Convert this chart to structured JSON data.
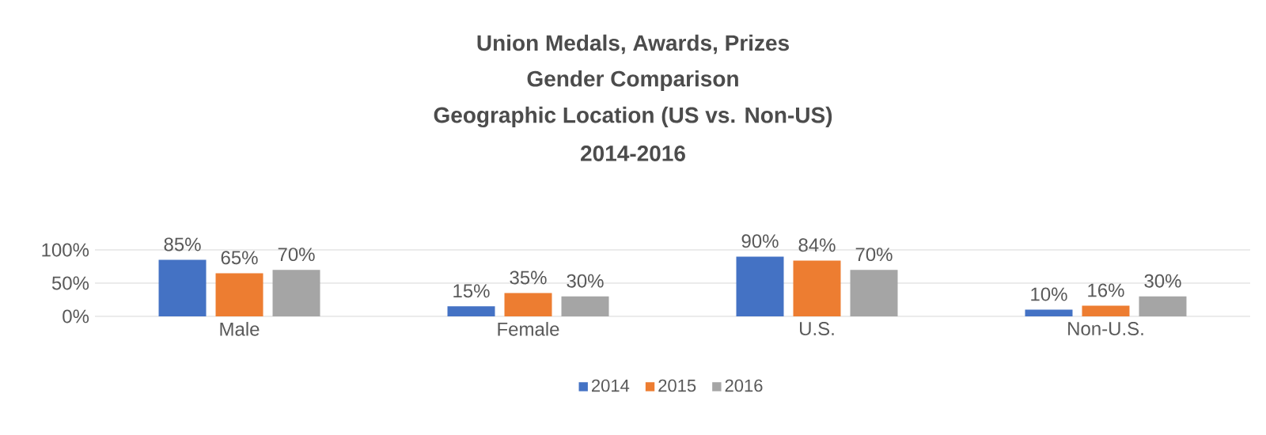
{
  "chart_data": {
    "type": "bar",
    "title": "Union Medals, Awards, Prizes",
    "subtitle": "Gender Comparison",
    "annotations": [
      "Geographic Location (US vs. Non-US)",
      "2014-2016"
    ],
    "categories": [
      "Male",
      "Female",
      "U.S.",
      "Non-U.S."
    ],
    "series": [
      {
        "name": "2014",
        "color": "#4472c4",
        "values": [
          85,
          15,
          90,
          10
        ],
        "value_labels": [
          "85%",
          "15%",
          "90%",
          "10%"
        ]
      },
      {
        "name": "2015",
        "color": "#ed7d31",
        "values": [
          65,
          35,
          84,
          16
        ],
        "value_labels": [
          "65%",
          "35%",
          "84%",
          "16%"
        ]
      },
      {
        "name": "2016",
        "color": "#a5a5a5",
        "values": [
          70,
          30,
          70,
          30
        ],
        "value_labels": [
          "70%",
          "30%",
          "70%",
          "30%"
        ]
      }
    ],
    "ylim": [
      0,
      100
    ],
    "yticks": [
      {
        "value": 0,
        "label": "0%"
      },
      {
        "value": 50,
        "label": "50%"
      },
      {
        "value": 100,
        "label": "100%"
      }
    ],
    "grid": "y",
    "legend": "bottom"
  }
}
